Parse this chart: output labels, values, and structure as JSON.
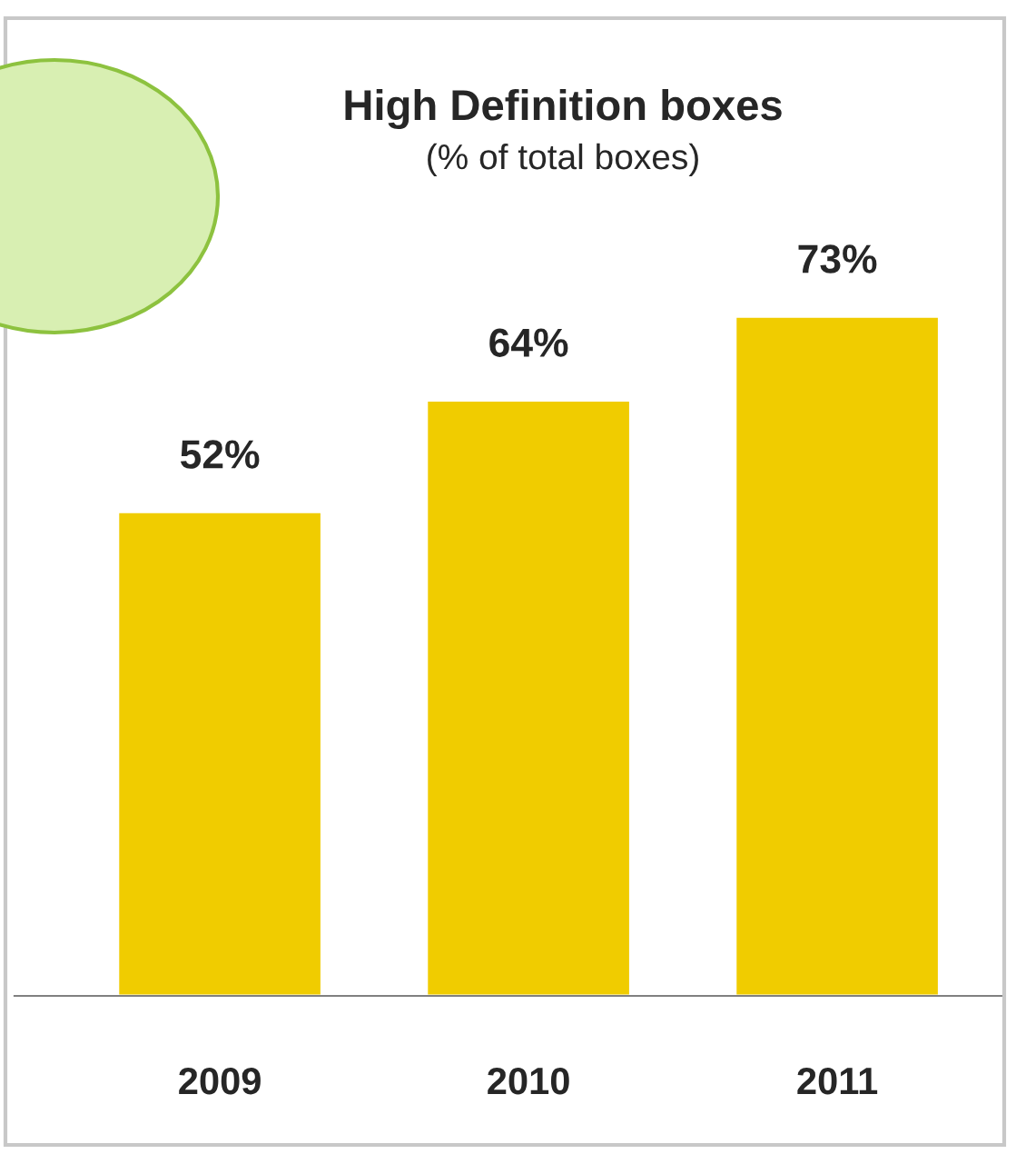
{
  "chart_data": {
    "type": "bar",
    "title": "High Definition boxes",
    "subtitle": "(% of total boxes)",
    "categories": [
      "2009",
      "2010",
      "2011"
    ],
    "values": [
      52,
      64,
      73
    ],
    "color": "#f0cc00",
    "value_labels": [
      "52%",
      "64%",
      "73%"
    ],
    "grid": false,
    "legend": false
  }
}
